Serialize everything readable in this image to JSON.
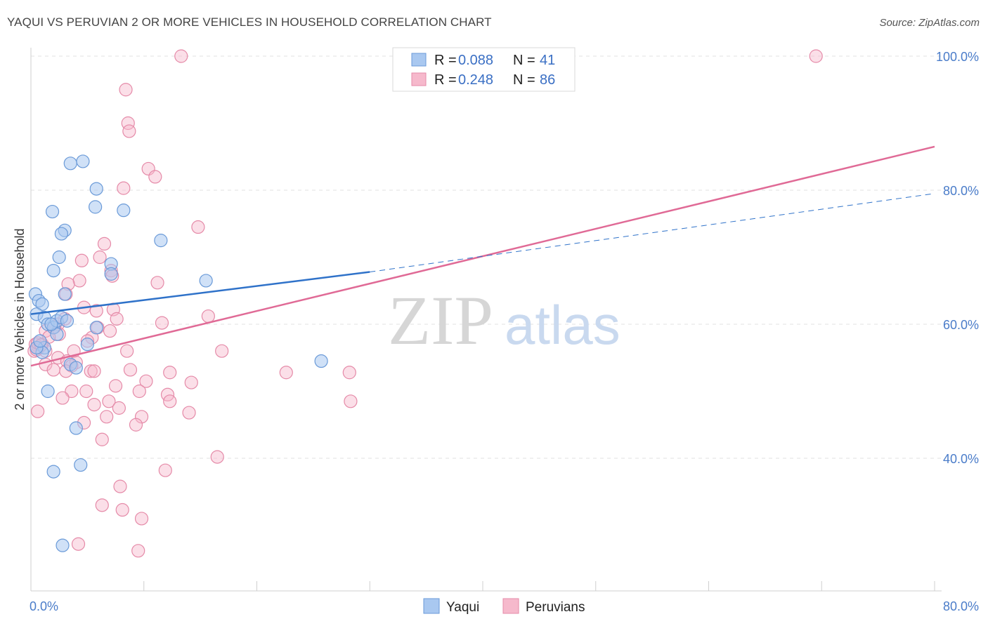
{
  "title": "YAQUI VS PERUVIAN 2 OR MORE VEHICLES IN HOUSEHOLD CORRELATION CHART",
  "source": "Source: ZipAtlas.com",
  "watermark": {
    "zip": "ZIP",
    "atlas": "atlas"
  },
  "colors": {
    "yaqui_fill": "#a9c8f0",
    "yaqui_stroke": "#6a9ad8",
    "yaqui_line": "#2f72c9",
    "peru_fill": "#f6b9cc",
    "peru_stroke": "#e58aa8",
    "peru_line": "#e06a96",
    "tick_text": "#4a7cc9"
  },
  "legend": {
    "rows": [
      {
        "r_label": "R = ",
        "r_value": "0.088",
        "n_label": "N = ",
        "n_value": "41"
      },
      {
        "r_label": "R = ",
        "r_value": "0.248",
        "n_label": "N = ",
        "n_value": "86"
      }
    ]
  },
  "bottom_legend": {
    "yaqui": "Yaqui",
    "peru": "Peruvians"
  },
  "chart_data": {
    "type": "scatter",
    "title": "YAQUI VS PERUVIAN 2 OR MORE VEHICLES IN HOUSEHOLD CORRELATION CHART",
    "xlabel": "",
    "ylabel": "2 or more Vehicles in Household",
    "xlim": [
      0,
      80
    ],
    "ylim": [
      18,
      102
    ],
    "x_tick_labels": [
      {
        "value": 0,
        "label": "0.0%"
      },
      {
        "value": 80,
        "label": "80.0%"
      }
    ],
    "y_tick_labels": [
      {
        "value": 40,
        "label": "40.0%"
      },
      {
        "value": 60,
        "label": "60.0%"
      },
      {
        "value": 80,
        "label": "80.0%"
      },
      {
        "value": 100,
        "label": "100.0%"
      }
    ],
    "grid": true,
    "legend_position": "top-center",
    "series": [
      {
        "name": "Yaqui",
        "r": 0.088,
        "n": 41,
        "trend": {
          "x0": 0,
          "y0": 61.5,
          "x1": 30,
          "y1": 67.8,
          "dashed_to_x": 80,
          "dashed_to_y": 79.5
        },
        "points": [
          {
            "x": 0.4,
            "y": 64.5
          },
          {
            "x": 0.7,
            "y": 63.5
          },
          {
            "x": 1.0,
            "y": 63.0
          },
          {
            "x": 0.5,
            "y": 61.5
          },
          {
            "x": 1.2,
            "y": 61.0
          },
          {
            "x": 1.5,
            "y": 60.0
          },
          {
            "x": 2.0,
            "y": 59.5
          },
          {
            "x": 2.3,
            "y": 60.5
          },
          {
            "x": 2.7,
            "y": 61.0
          },
          {
            "x": 3.2,
            "y": 60.5
          },
          {
            "x": 2.3,
            "y": 58.5
          },
          {
            "x": 1.2,
            "y": 56.5
          },
          {
            "x": 1.0,
            "y": 55.8
          },
          {
            "x": 0.5,
            "y": 56.5
          },
          {
            "x": 1.5,
            "y": 50.0
          },
          {
            "x": 3.5,
            "y": 54.0
          },
          {
            "x": 4.0,
            "y": 53.5
          },
          {
            "x": 3.5,
            "y": 84.0
          },
          {
            "x": 4.6,
            "y": 84.3
          },
          {
            "x": 5.8,
            "y": 80.2
          },
          {
            "x": 5.7,
            "y": 77.5
          },
          {
            "x": 8.2,
            "y": 77.0
          },
          {
            "x": 1.9,
            "y": 76.8
          },
          {
            "x": 3.0,
            "y": 74.0
          },
          {
            "x": 2.7,
            "y": 73.5
          },
          {
            "x": 2.5,
            "y": 70.0
          },
          {
            "x": 2.0,
            "y": 68.0
          },
          {
            "x": 3.0,
            "y": 64.5
          },
          {
            "x": 7.1,
            "y": 69.0
          },
          {
            "x": 7.1,
            "y": 67.5
          },
          {
            "x": 11.5,
            "y": 72.5
          },
          {
            "x": 15.5,
            "y": 66.5
          },
          {
            "x": 5.8,
            "y": 59.5
          },
          {
            "x": 5.0,
            "y": 57.0
          },
          {
            "x": 25.7,
            "y": 54.5
          },
          {
            "x": 4.0,
            "y": 44.5
          },
          {
            "x": 4.4,
            "y": 39.0
          },
          {
            "x": 2.0,
            "y": 38.0
          },
          {
            "x": 2.8,
            "y": 27.0
          },
          {
            "x": 0.8,
            "y": 57.5
          },
          {
            "x": 1.8,
            "y": 60.0
          }
        ]
      },
      {
        "name": "Peruvians",
        "r": 0.248,
        "n": 86,
        "trend": {
          "x0": 0,
          "y0": 53.8,
          "x1": 80,
          "y1": 86.5
        },
        "points": [
          {
            "x": 13.3,
            "y": 100.0
          },
          {
            "x": 69.5,
            "y": 100.0
          },
          {
            "x": 8.4,
            "y": 95.0
          },
          {
            "x": 8.6,
            "y": 90.0
          },
          {
            "x": 8.7,
            "y": 88.8
          },
          {
            "x": 10.4,
            "y": 83.2
          },
          {
            "x": 11.0,
            "y": 82.0
          },
          {
            "x": 8.2,
            "y": 80.3
          },
          {
            "x": 14.8,
            "y": 74.5
          },
          {
            "x": 6.5,
            "y": 72.0
          },
          {
            "x": 6.1,
            "y": 70.0
          },
          {
            "x": 4.5,
            "y": 69.5
          },
          {
            "x": 7.1,
            "y": 68.0
          },
          {
            "x": 7.2,
            "y": 67.2
          },
          {
            "x": 4.3,
            "y": 66.5
          },
          {
            "x": 11.2,
            "y": 66.2
          },
          {
            "x": 3.3,
            "y": 66.0
          },
          {
            "x": 3.1,
            "y": 64.5
          },
          {
            "x": 4.7,
            "y": 62.5
          },
          {
            "x": 7.3,
            "y": 62.2
          },
          {
            "x": 5.8,
            "y": 62.0
          },
          {
            "x": 15.7,
            "y": 61.2
          },
          {
            "x": 3.0,
            "y": 60.8
          },
          {
            "x": 7.6,
            "y": 60.8
          },
          {
            "x": 11.6,
            "y": 60.2
          },
          {
            "x": 2.4,
            "y": 60.0
          },
          {
            "x": 5.9,
            "y": 59.5
          },
          {
            "x": 7.0,
            "y": 59.0
          },
          {
            "x": 1.3,
            "y": 59.0
          },
          {
            "x": 2.5,
            "y": 58.5
          },
          {
            "x": 5.4,
            "y": 58.0
          },
          {
            "x": 5.0,
            "y": 57.5
          },
          {
            "x": 1.0,
            "y": 57.0
          },
          {
            "x": 0.4,
            "y": 57.0
          },
          {
            "x": 0.7,
            "y": 56.5
          },
          {
            "x": 1.3,
            "y": 56.0
          },
          {
            "x": 0.3,
            "y": 56.0
          },
          {
            "x": 3.8,
            "y": 56.0
          },
          {
            "x": 8.5,
            "y": 56.0
          },
          {
            "x": 16.9,
            "y": 56.0
          },
          {
            "x": 2.4,
            "y": 55.0
          },
          {
            "x": 3.2,
            "y": 54.5
          },
          {
            "x": 4.0,
            "y": 54.3
          },
          {
            "x": 1.3,
            "y": 54.0
          },
          {
            "x": 3.6,
            "y": 53.8
          },
          {
            "x": 2.0,
            "y": 53.2
          },
          {
            "x": 3.1,
            "y": 53.0
          },
          {
            "x": 5.3,
            "y": 53.0
          },
          {
            "x": 5.6,
            "y": 53.0
          },
          {
            "x": 8.8,
            "y": 53.2
          },
          {
            "x": 12.3,
            "y": 52.8
          },
          {
            "x": 22.6,
            "y": 52.8
          },
          {
            "x": 28.2,
            "y": 52.8
          },
          {
            "x": 10.2,
            "y": 51.5
          },
          {
            "x": 14.2,
            "y": 51.3
          },
          {
            "x": 7.5,
            "y": 50.8
          },
          {
            "x": 3.6,
            "y": 50.0
          },
          {
            "x": 4.9,
            "y": 50.0
          },
          {
            "x": 9.6,
            "y": 50.0
          },
          {
            "x": 12.1,
            "y": 49.5
          },
          {
            "x": 2.8,
            "y": 49.0
          },
          {
            "x": 6.9,
            "y": 48.5
          },
          {
            "x": 12.3,
            "y": 48.5
          },
          {
            "x": 28.3,
            "y": 48.5
          },
          {
            "x": 5.6,
            "y": 48.0
          },
          {
            "x": 7.8,
            "y": 47.5
          },
          {
            "x": 0.6,
            "y": 47.0
          },
          {
            "x": 14.0,
            "y": 46.8
          },
          {
            "x": 6.7,
            "y": 46.2
          },
          {
            "x": 9.8,
            "y": 46.2
          },
          {
            "x": 4.7,
            "y": 45.3
          },
          {
            "x": 9.3,
            "y": 45.0
          },
          {
            "x": 6.3,
            "y": 42.8
          },
          {
            "x": 16.5,
            "y": 40.2
          },
          {
            "x": 11.9,
            "y": 38.2
          },
          {
            "x": 7.9,
            "y": 35.8
          },
          {
            "x": 6.3,
            "y": 33.0
          },
          {
            "x": 8.1,
            "y": 32.3
          },
          {
            "x": 9.8,
            "y": 31.0
          },
          {
            "x": 4.2,
            "y": 27.2
          },
          {
            "x": 9.5,
            "y": 26.2
          },
          {
            "x": 0.5,
            "y": 56.2
          },
          {
            "x": 0.6,
            "y": 57.2
          },
          {
            "x": 2.1,
            "y": 59.6
          },
          {
            "x": 1.6,
            "y": 58.1
          },
          {
            "x": 0.9,
            "y": 56.9
          }
        ]
      }
    ]
  }
}
